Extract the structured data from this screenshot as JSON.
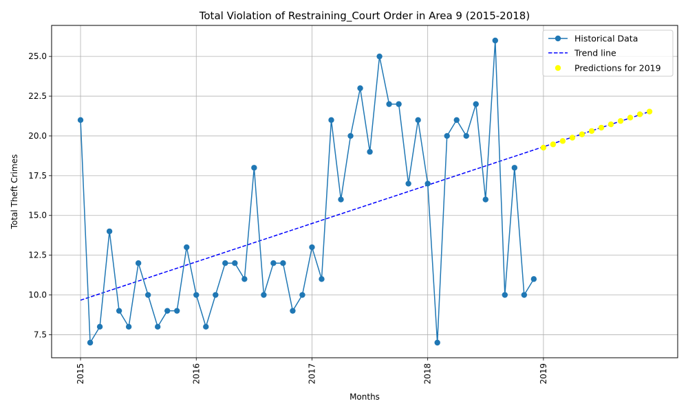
{
  "chart_data": {
    "type": "line",
    "title": "Total Violation of Restraining_Court Order in Area 9 (2015-2018)",
    "xlabel": "Months",
    "ylabel": "Total Theft Crimes",
    "xlim": [
      2014.75,
      2020.16
    ],
    "ylim": [
      6.05,
      26.95
    ],
    "x_ticks": [
      2015,
      2016,
      2017,
      2018,
      2019
    ],
    "x_tick_labels": [
      "2015",
      "2016",
      "2017",
      "2018",
      "2019"
    ],
    "y_ticks": [
      7.5,
      10.0,
      12.5,
      15.0,
      17.5,
      20.0,
      22.5,
      25.0
    ],
    "y_tick_labels": [
      "7.5",
      "10.0",
      "12.5",
      "15.0",
      "17.5",
      "20.0",
      "22.5",
      "25.0"
    ],
    "grid": true,
    "legend_position": "top-right",
    "series": [
      {
        "name": "Historical Data",
        "style": "line-marker",
        "color": "#1f77b4",
        "x_start": 2015,
        "x_step_months": 1,
        "values": [
          21,
          7,
          8,
          14,
          9,
          8,
          12,
          10,
          8,
          9,
          9,
          13,
          10,
          8,
          10,
          12,
          12,
          11,
          18,
          10,
          12,
          12,
          9,
          10,
          13,
          11,
          21,
          16,
          20,
          23,
          19,
          25,
          22,
          22,
          17,
          21,
          17,
          7,
          20,
          21,
          20,
          22,
          16,
          26,
          10,
          18,
          10,
          11
        ]
      },
      {
        "name": "Trend line",
        "style": "dashed",
        "color": "#0000ff",
        "x": [
          2015,
          2019.917
        ],
        "values": [
          9.67,
          21.53
        ]
      },
      {
        "name": "Predictions for 2019",
        "style": "scatter",
        "color": "#ffff00",
        "x_start": 2019,
        "x_step_months": 1,
        "values": [
          19.26,
          19.47,
          19.68,
          19.89,
          20.1,
          20.31,
          20.52,
          20.73,
          20.94,
          21.15,
          21.36,
          21.53
        ]
      }
    ]
  }
}
